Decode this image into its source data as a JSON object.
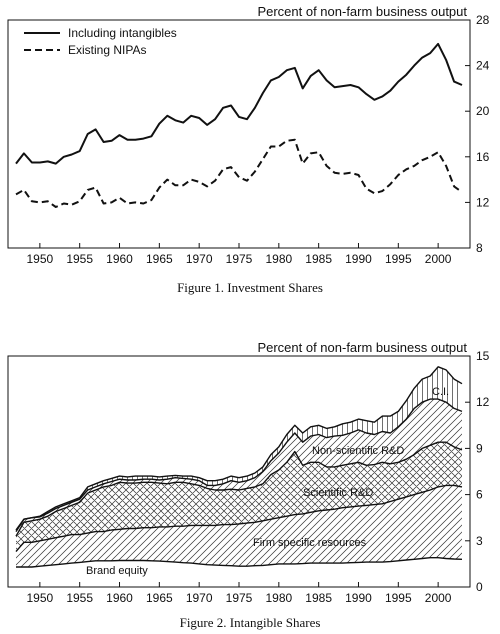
{
  "chart_data": [
    {
      "type": "line",
      "title": "",
      "y_unit_label": "Percent of non-farm business output",
      "caption": "Figure 1.  Investment Shares",
      "xlim": [
        1946,
        2004
      ],
      "ylim": [
        8,
        28
      ],
      "x_ticks": [
        1950,
        1955,
        1960,
        1965,
        1970,
        1975,
        1980,
        1985,
        1990,
        1995,
        2000
      ],
      "y_ticks": [
        8,
        12,
        16,
        20,
        24,
        28
      ],
      "y_axis_side": "right",
      "legend_position": "top-left",
      "x": [
        1947,
        1948,
        1949,
        1950,
        1951,
        1952,
        1953,
        1954,
        1955,
        1956,
        1957,
        1958,
        1959,
        1960,
        1961,
        1962,
        1963,
        1964,
        1965,
        1966,
        1967,
        1968,
        1969,
        1970,
        1971,
        1972,
        1973,
        1974,
        1975,
        1976,
        1977,
        1978,
        1979,
        1980,
        1981,
        1982,
        1983,
        1984,
        1985,
        1986,
        1987,
        1988,
        1989,
        1990,
        1991,
        1992,
        1993,
        1994,
        1995,
        1996,
        1997,
        1998,
        1999,
        2000,
        2001,
        2002,
        2003
      ],
      "series": [
        {
          "name": "Including intangibles",
          "style": "solid",
          "values": [
            15.4,
            16.3,
            15.5,
            15.5,
            15.6,
            15.4,
            16.0,
            16.2,
            16.5,
            18.0,
            18.4,
            17.3,
            17.4,
            17.9,
            17.5,
            17.5,
            17.6,
            17.8,
            18.9,
            19.6,
            19.2,
            19.0,
            19.6,
            19.4,
            18.8,
            19.3,
            20.3,
            20.5,
            19.5,
            19.3,
            20.3,
            21.6,
            22.7,
            23.0,
            23.6,
            23.8,
            22.0,
            23.1,
            23.6,
            22.7,
            22.1,
            22.2,
            22.3,
            22.1,
            21.5,
            21.0,
            21.3,
            21.8,
            22.6,
            23.2,
            24.0,
            24.7,
            25.1,
            25.9,
            24.5,
            22.6,
            22.3
          ]
        },
        {
          "name": "Existing NIPAs",
          "style": "dashed",
          "values": [
            12.7,
            13.1,
            12.1,
            12.0,
            12.1,
            11.6,
            11.9,
            11.8,
            12.1,
            13.1,
            13.3,
            11.9,
            12.0,
            12.4,
            11.9,
            12.0,
            11.9,
            12.2,
            13.3,
            14.0,
            13.5,
            13.5,
            14.0,
            13.8,
            13.4,
            13.9,
            14.9,
            15.1,
            14.2,
            13.9,
            14.7,
            15.8,
            16.9,
            16.9,
            17.4,
            17.5,
            15.4,
            16.3,
            16.4,
            15.2,
            14.6,
            14.5,
            14.6,
            14.4,
            13.2,
            12.8,
            13.0,
            13.6,
            14.4,
            14.9,
            15.2,
            15.7,
            16.0,
            16.4,
            15.2,
            13.4,
            12.9
          ]
        }
      ]
    },
    {
      "type": "area",
      "title": "",
      "y_unit_label": "Percent of non-farm business output",
      "caption": "Figure 2.  Intangible Shares",
      "xlim": [
        1946,
        2004
      ],
      "ylim": [
        0,
        15
      ],
      "x_ticks": [
        1950,
        1955,
        1960,
        1965,
        1970,
        1975,
        1980,
        1985,
        1990,
        1995,
        2000
      ],
      "y_ticks": [
        0,
        3,
        6,
        9,
        12,
        15
      ],
      "y_axis_side": "right",
      "stacked": true,
      "x": [
        1947,
        1948,
        1949,
        1950,
        1951,
        1952,
        1953,
        1954,
        1955,
        1956,
        1957,
        1958,
        1959,
        1960,
        1961,
        1962,
        1963,
        1964,
        1965,
        1966,
        1967,
        1968,
        1969,
        1970,
        1971,
        1972,
        1973,
        1974,
        1975,
        1976,
        1977,
        1978,
        1979,
        1980,
        1981,
        1982,
        1983,
        1984,
        1985,
        1986,
        1987,
        1988,
        1989,
        1990,
        1991,
        1992,
        1993,
        1994,
        1995,
        1996,
        1997,
        1998,
        1999,
        2000,
        2001,
        2002,
        2003
      ],
      "series": [
        {
          "name": "Brand equity",
          "pattern": "blank",
          "cumulative": [
            1.3,
            1.3,
            1.3,
            1.35,
            1.4,
            1.45,
            1.5,
            1.55,
            1.6,
            1.65,
            1.7,
            1.7,
            1.7,
            1.72,
            1.72,
            1.72,
            1.72,
            1.7,
            1.68,
            1.65,
            1.62,
            1.58,
            1.55,
            1.5,
            1.45,
            1.42,
            1.4,
            1.38,
            1.35,
            1.35,
            1.38,
            1.4,
            1.45,
            1.5,
            1.5,
            1.5,
            1.52,
            1.55,
            1.55,
            1.55,
            1.55,
            1.55,
            1.58,
            1.6,
            1.62,
            1.62,
            1.62,
            1.65,
            1.7,
            1.75,
            1.8,
            1.85,
            1.9,
            1.9,
            1.85,
            1.82,
            1.8
          ]
        },
        {
          "name": "Firm specific resources",
          "pattern": "diagonal",
          "cumulative": [
            2.3,
            2.9,
            2.9,
            3.0,
            3.1,
            3.2,
            3.3,
            3.4,
            3.4,
            3.5,
            3.6,
            3.6,
            3.7,
            3.75,
            3.8,
            3.8,
            3.85,
            3.85,
            3.9,
            3.9,
            3.95,
            3.95,
            4.0,
            4.0,
            4.0,
            4.0,
            4.05,
            4.05,
            4.1,
            4.15,
            4.2,
            4.3,
            4.4,
            4.5,
            4.6,
            4.7,
            4.75,
            4.85,
            4.95,
            5.0,
            5.05,
            5.15,
            5.2,
            5.25,
            5.3,
            5.35,
            5.4,
            5.55,
            5.7,
            5.85,
            6.0,
            6.15,
            6.3,
            6.5,
            6.6,
            6.6,
            6.5
          ]
        },
        {
          "name": "Scientific R&D",
          "pattern": "crosshatch",
          "cumulative": [
            3.3,
            4.2,
            4.3,
            4.4,
            4.6,
            4.9,
            5.1,
            5.3,
            5.5,
            6.1,
            6.3,
            6.5,
            6.6,
            6.8,
            6.75,
            6.75,
            6.8,
            6.8,
            6.75,
            6.7,
            6.8,
            6.8,
            6.7,
            6.6,
            6.4,
            6.3,
            6.3,
            6.35,
            6.3,
            6.4,
            6.5,
            6.7,
            7.3,
            7.6,
            8.1,
            8.8,
            7.9,
            8.1,
            8.1,
            7.8,
            7.8,
            7.9,
            8.0,
            8.1,
            7.9,
            7.95,
            8.1,
            8.0,
            8.1,
            8.3,
            8.6,
            9.0,
            9.2,
            9.4,
            9.4,
            9.1,
            8.9
          ]
        },
        {
          "name": "Non-scientific R&D",
          "pattern": "diagonal",
          "cumulative": [
            3.6,
            4.4,
            4.5,
            4.55,
            4.8,
            5.1,
            5.3,
            5.5,
            5.7,
            6.3,
            6.5,
            6.7,
            6.85,
            7.0,
            6.95,
            6.95,
            7.0,
            7.0,
            6.95,
            7.0,
            7.1,
            7.05,
            7.0,
            6.9,
            6.6,
            6.6,
            6.7,
            6.9,
            6.8,
            6.9,
            7.1,
            7.5,
            8.2,
            8.7,
            9.4,
            10.0,
            9.4,
            9.8,
            9.9,
            9.7,
            9.8,
            9.85,
            10.0,
            10.2,
            10.0,
            9.9,
            10.1,
            10.0,
            10.4,
            10.9,
            11.6,
            12.0,
            12.2,
            12.2,
            12.0,
            11.6,
            11.4
          ]
        },
        {
          "name": "C.I.",
          "pattern": "vertical",
          "cumulative": [
            3.7,
            4.4,
            4.5,
            4.6,
            4.9,
            5.2,
            5.4,
            5.6,
            5.8,
            6.5,
            6.7,
            6.9,
            7.05,
            7.2,
            7.15,
            7.2,
            7.2,
            7.2,
            7.15,
            7.2,
            7.25,
            7.2,
            7.2,
            7.1,
            6.9,
            6.9,
            7.0,
            7.2,
            7.1,
            7.2,
            7.4,
            7.8,
            8.6,
            9.1,
            9.9,
            10.5,
            10.0,
            10.4,
            10.5,
            10.3,
            10.4,
            10.6,
            10.7,
            10.9,
            10.8,
            10.7,
            11.1,
            11.1,
            11.4,
            12.1,
            12.9,
            13.5,
            13.7,
            14.3,
            14.1,
            13.5,
            13.2
          ]
        }
      ],
      "area_labels": [
        "Brand equity",
        "Firm specific resources",
        "Scientific R&D",
        "Non-scientific R&D",
        "C.I."
      ]
    }
  ]
}
